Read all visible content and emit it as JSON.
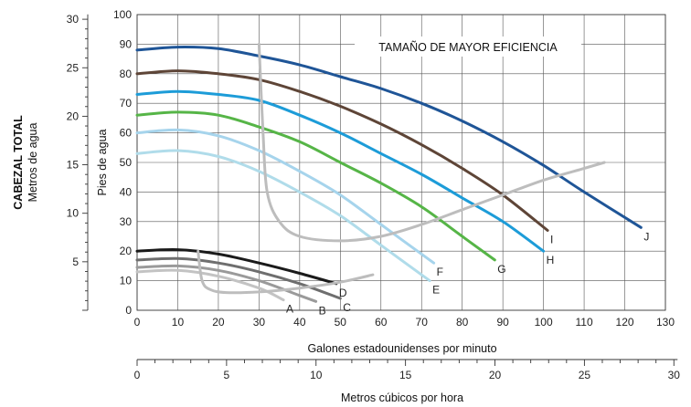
{
  "chart_data": {
    "type": "line",
    "annotation": "TAMAÑO DE MAYOR EFICIENCIA",
    "x_axis": {
      "label": "Galones estadounidenses por minuto",
      "range": [
        0,
        130
      ],
      "ticks": [
        0,
        10,
        20,
        30,
        40,
        50,
        60,
        70,
        80,
        90,
        100,
        110,
        120,
        130
      ],
      "grid": true
    },
    "x2_axis": {
      "label": "Metros cúbicos por hora",
      "range": [
        0,
        30
      ],
      "ticks": [
        0,
        5,
        10,
        15,
        20,
        25,
        30
      ]
    },
    "y_axis": {
      "label": "Pies de agua",
      "range": [
        0,
        100
      ],
      "ticks": [
        0,
        10,
        20,
        30,
        40,
        50,
        60,
        70,
        80,
        90,
        100
      ],
      "grid": true
    },
    "y2_axis": {
      "label_line1": "CABEZAL TOTAL",
      "label_line2": "Metros de agua",
      "range": [
        0,
        30
      ],
      "ticks": [
        5,
        10,
        15,
        20,
        25,
        30
      ]
    },
    "series": [
      {
        "name": "A",
        "color": "#c3c3c3",
        "x": [
          0,
          10,
          20,
          30,
          36
        ],
        "y": [
          13,
          13.5,
          11.5,
          7.5,
          3.5
        ]
      },
      {
        "name": "B",
        "color": "#9a9a9a",
        "x": [
          0,
          10,
          20,
          30,
          40,
          44
        ],
        "y": [
          14.5,
          15,
          13.5,
          10,
          5,
          3
        ]
      },
      {
        "name": "C",
        "color": "#6e6e6e",
        "x": [
          0,
          10,
          20,
          30,
          40,
          50
        ],
        "y": [
          17,
          17.5,
          16,
          13,
          9,
          4
        ]
      },
      {
        "name": "D",
        "color": "#1a1a1a",
        "x": [
          0,
          10,
          20,
          30,
          40,
          49
        ],
        "y": [
          20,
          20.5,
          19,
          16,
          12.5,
          9
        ]
      },
      {
        "name": "E",
        "color": "#b0dcea",
        "x": [
          0,
          10,
          20,
          30,
          40,
          50,
          60,
          72
        ],
        "y": [
          53,
          54,
          52,
          47,
          40,
          32,
          22,
          10
        ]
      },
      {
        "name": "F",
        "color": "#a6d4ec",
        "x": [
          0,
          10,
          20,
          30,
          40,
          50,
          60,
          73
        ],
        "y": [
          60,
          61,
          59,
          54,
          47,
          39,
          29,
          16
        ]
      },
      {
        "name": "G",
        "color": "#56b547",
        "x": [
          0,
          10,
          20,
          30,
          40,
          50,
          60,
          70,
          80,
          88
        ],
        "y": [
          66,
          67,
          66,
          62,
          57,
          50,
          43,
          35,
          25,
          17
        ]
      },
      {
        "name": "H",
        "color": "#1d9cd8",
        "x": [
          0,
          10,
          20,
          30,
          40,
          50,
          60,
          70,
          80,
          90,
          100
        ],
        "y": [
          73,
          74,
          73,
          71,
          66,
          60,
          53,
          46,
          38,
          30,
          20
        ]
      },
      {
        "name": "I",
        "color": "#5e4537",
        "x": [
          0,
          10,
          20,
          30,
          40,
          50,
          60,
          70,
          80,
          90,
          101
        ],
        "y": [
          80,
          81,
          80,
          78,
          74,
          69,
          63,
          56,
          48,
          39,
          27
        ]
      },
      {
        "name": "J",
        "color": "#1f5597",
        "x": [
          0,
          10,
          20,
          30,
          40,
          50,
          60,
          70,
          80,
          90,
          100,
          110,
          124
        ],
        "y": [
          88,
          89,
          88.5,
          86,
          83,
          79,
          75,
          70,
          64,
          57,
          49,
          40,
          28
        ]
      }
    ],
    "efficiency_boundaries": [
      {
        "color": "#bdbdbd",
        "x": [
          30,
          31,
          32,
          35,
          40,
          50,
          60,
          70,
          80,
          90,
          100,
          110,
          115
        ],
        "y": [
          90,
          60,
          40,
          30,
          25,
          23.5,
          25,
          29,
          34,
          39,
          44,
          48,
          50
        ]
      },
      {
        "color": "#bdbdbd",
        "x": [
          15,
          16,
          18,
          22,
          30,
          40,
          50,
          58
        ],
        "y": [
          20,
          10,
          7,
          6,
          6.2,
          7.5,
          9.5,
          12
        ]
      }
    ]
  }
}
